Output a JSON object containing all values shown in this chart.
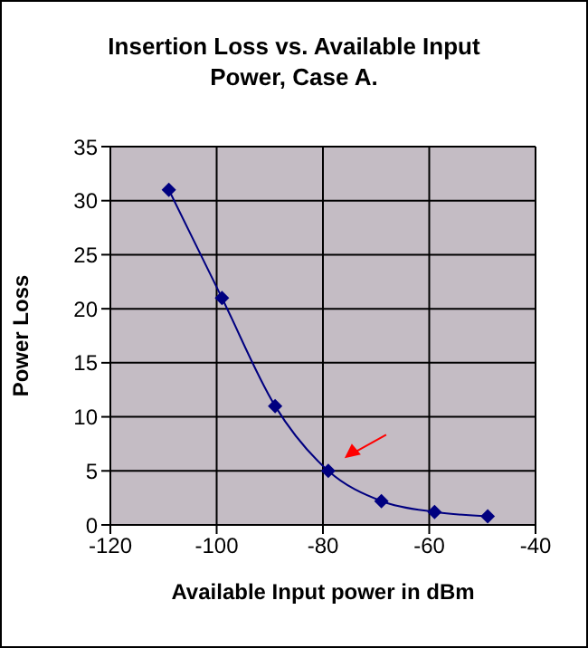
{
  "chart_data": {
    "type": "line",
    "title": "Insertion Loss vs. Available Input Power, Case A.",
    "xlabel": "Available Input power in dBm",
    "ylabel": "Power Loss",
    "x": [
      -109,
      -99,
      -89,
      -79,
      -69,
      -59,
      -49
    ],
    "series": [
      {
        "color": "#000080",
        "values": [
          31,
          21,
          11,
          5,
          2.2,
          1.2,
          0.8
        ]
      }
    ],
    "xlim": [
      -120,
      -40
    ],
    "xticks": [
      -120,
      -100,
      -80,
      -60,
      -40
    ],
    "ylim": [
      0,
      35
    ],
    "yticks": [
      0,
      5,
      10,
      15,
      20,
      25,
      30,
      35
    ],
    "grid": true,
    "marker": "diamond",
    "line_style": "solid",
    "legend": false
  }
}
